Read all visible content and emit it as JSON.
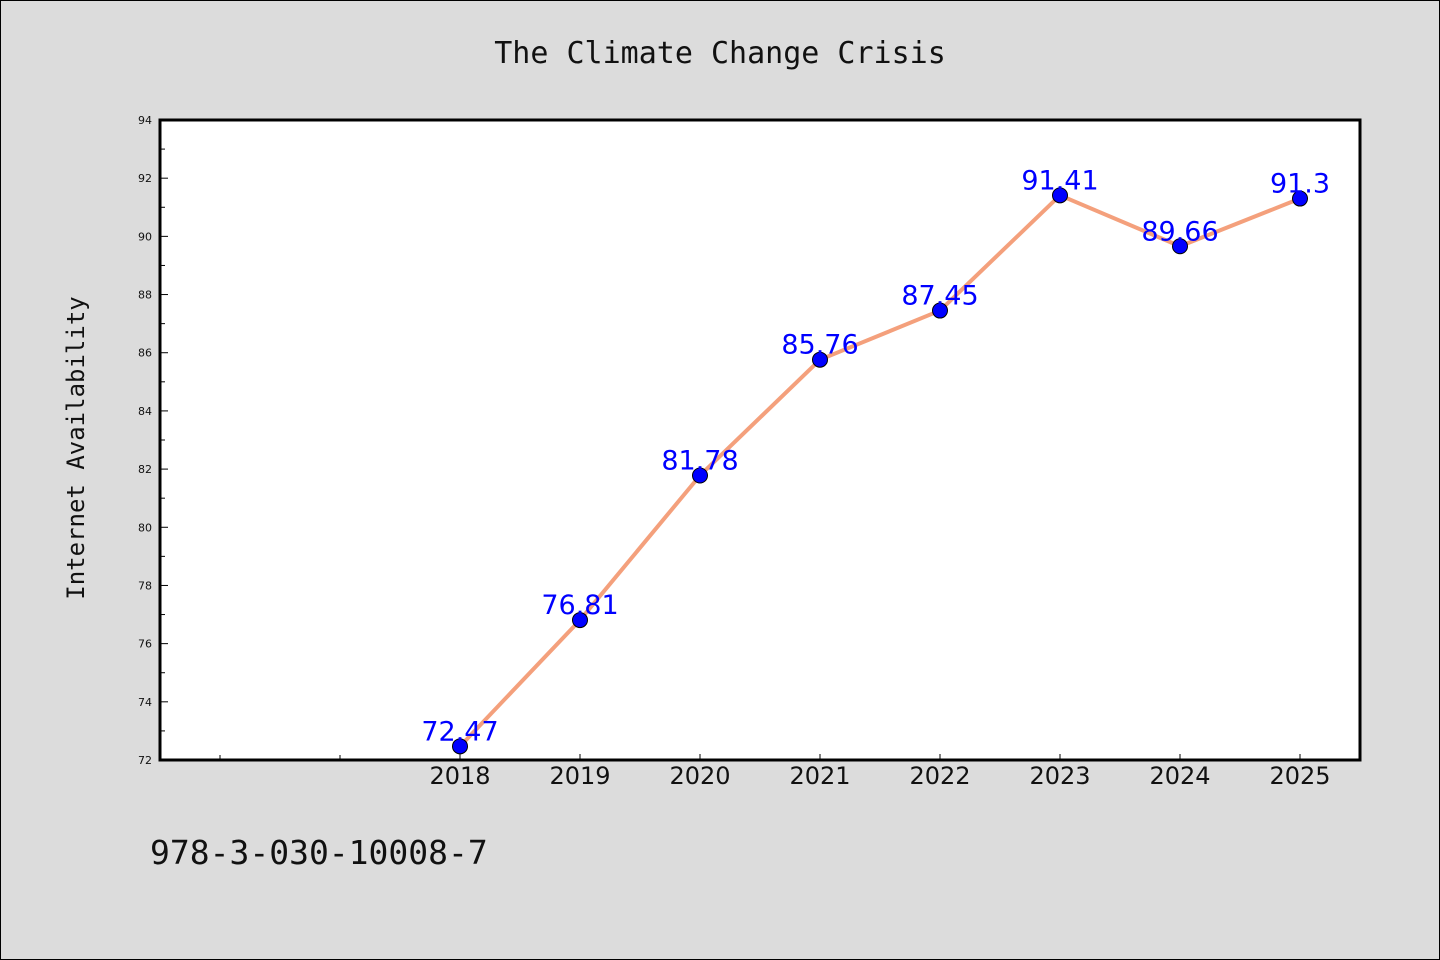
{
  "chart_data": {
    "type": "line",
    "title": "The Climate Change Crisis",
    "xlabel": "",
    "ylabel": "Internet Availability",
    "categories": [
      "2018",
      "2019",
      "2020",
      "2021",
      "2022",
      "2023",
      "2024",
      "2025"
    ],
    "values": [
      72.47,
      76.81,
      81.78,
      85.76,
      87.45,
      91.41,
      89.66,
      91.3
    ],
    "data_labels": [
      "72.47",
      "76.81",
      "81.78",
      "85.76",
      "87.45",
      "91.41",
      "89.66",
      "91.3"
    ],
    "yticks": [
      "72",
      "74",
      "76",
      "78",
      "80",
      "82",
      "84",
      "86",
      "88",
      "90",
      "92",
      "94"
    ],
    "ylim": [
      72,
      94
    ],
    "grid": false,
    "line_color": "#f4a07c",
    "marker_color": "#0000ff",
    "label_color": "#0000ff"
  },
  "footer": {
    "isbn": "978-3-030-10008-7"
  }
}
